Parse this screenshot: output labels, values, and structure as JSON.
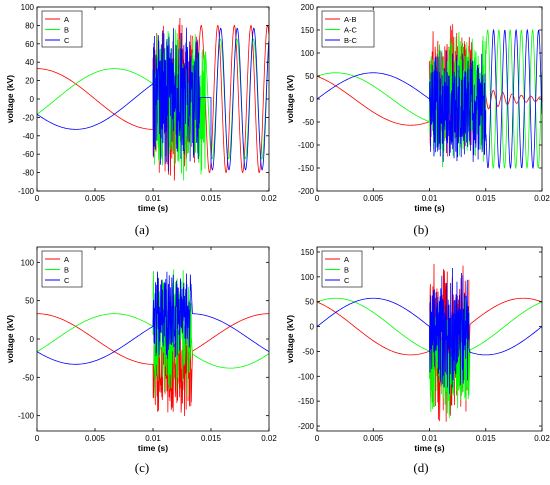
{
  "panel_labels": [
    "(a)",
    "(b)",
    "(c)",
    "(d)"
  ],
  "chart_data": [
    {
      "type": "line",
      "panel": "(a)",
      "xlabel": "time (s)",
      "ylabel": "voltage (kV)",
      "xlim": [
        0,
        0.02
      ],
      "ylim": [
        -100,
        100
      ],
      "xticks": [
        0,
        0.005,
        0.01,
        0.015,
        0.02
      ],
      "xtick_labels": [
        "0",
        "0.005",
        "0.01",
        "0.015",
        "0.02"
      ],
      "yticks": [
        -100,
        -80,
        -60,
        -40,
        -20,
        0,
        20,
        40,
        60,
        80,
        100
      ],
      "ytick_labels": [
        "-100",
        "-80",
        "-60",
        "-40",
        "-20",
        "0",
        "20",
        "40",
        "60",
        "80",
        "100"
      ],
      "legend_position": "top-left",
      "grid": false,
      "colors": {
        "A": "#ff0000",
        "B": "#00ff00",
        "C": "#0000ff"
      },
      "series": [
        {
          "name": "A",
          "color": "#ff0000",
          "pre_fault": {
            "amplitude": 33,
            "phase_deg": 90
          },
          "transient": {
            "start": 0.01,
            "end": 0.0138,
            "min": -93,
            "max": 90
          },
          "post_fault": {
            "start": 0.0138,
            "amplitude": 80,
            "frequency_hz": 700,
            "phase_deg": 0
          }
        },
        {
          "name": "B",
          "color": "#00ff00",
          "pre_fault": {
            "amplitude": 33,
            "phase_deg": -30
          },
          "transient": {
            "start": 0.01,
            "end": 0.0145,
            "min": -95,
            "max": 80
          },
          "post_fault": {
            "start": 0.0145,
            "amplitude": 65,
            "frequency_hz": 700,
            "phase_deg": 120
          }
        },
        {
          "name": "C",
          "color": "#0000ff",
          "pre_fault": {
            "amplitude": 33,
            "phase_deg": -150
          },
          "transient": {
            "start": 0.01,
            "end": 0.014,
            "min": -85,
            "max": 88
          },
          "post_fault": {
            "start": 0.015,
            "amplitude": 77,
            "frequency_hz": 700,
            "phase_deg": 240
          }
        }
      ]
    },
    {
      "type": "line",
      "panel": "(b)",
      "xlabel": "time (s)",
      "ylabel": "voltage (kV)",
      "xlim": [
        0,
        0.02
      ],
      "ylim": [
        -200,
        200
      ],
      "xticks": [
        0,
        0.005,
        0.01,
        0.015,
        0.02
      ],
      "xtick_labels": [
        "0",
        "0.005",
        "0.01",
        "0.015",
        "0.02"
      ],
      "yticks": [
        -200,
        -150,
        -100,
        -50,
        0,
        50,
        100,
        150,
        200
      ],
      "ytick_labels": [
        "-200",
        "-150",
        "-100",
        "-50",
        "0",
        "50",
        "100",
        "150",
        "200"
      ],
      "legend_position": "top-left",
      "grid": false,
      "colors": {
        "A-B": "#ff0000",
        "A-C": "#00ff00",
        "B-C": "#0000ff"
      },
      "series": [
        {
          "name": "A-B",
          "color": "#ff0000",
          "pre_fault": {
            "amplitude": 57,
            "phase_deg": 120
          },
          "transient": {
            "start": 0.01,
            "end": 0.0138,
            "min": -130,
            "max": 180
          },
          "post_fault": {
            "start": 0.0138,
            "amplitude": 35,
            "frequency_hz": 1200,
            "decay": 1.0,
            "phase_deg": 0
          }
        },
        {
          "name": "A-C",
          "color": "#00ff00",
          "pre_fault": {
            "amplitude": 57,
            "phase_deg": 60
          },
          "transient": {
            "start": 0.01,
            "end": 0.015,
            "min": -150,
            "max": 155
          },
          "post_fault": {
            "start": 0.015,
            "amplitude": 150,
            "frequency_hz": 1000,
            "phase_deg": 30
          }
        },
        {
          "name": "B-C",
          "color": "#0000ff",
          "pre_fault": {
            "amplitude": 57,
            "phase_deg": 0
          },
          "transient": {
            "start": 0.01,
            "end": 0.015,
            "min": -150,
            "max": 120
          },
          "post_fault": {
            "start": 0.015,
            "amplitude": 150,
            "frequency_hz": 1000,
            "phase_deg": 200
          }
        }
      ]
    },
    {
      "type": "line",
      "panel": "(c)",
      "xlabel": "time (s)",
      "ylabel": "voltage (kV)",
      "xlim": [
        0,
        0.02
      ],
      "ylim": [
        -120,
        120
      ],
      "xticks": [
        0,
        0.005,
        0.01,
        0.015,
        0.02
      ],
      "xtick_labels": [
        "0",
        "0.005",
        "0.01",
        "0.015",
        "0.02"
      ],
      "yticks": [
        -100,
        -50,
        0,
        50,
        100
      ],
      "ytick_labels": [
        "-100",
        "-50",
        "0",
        "50",
        "100"
      ],
      "legend_position": "top-left",
      "grid": false,
      "colors": {
        "A": "#ff0000",
        "B": "#00ff00",
        "C": "#0000ff"
      },
      "series": [
        {
          "name": "A",
          "color": "#ff0000",
          "pre_fault": {
            "amplitude": 33,
            "phase_deg": 90
          },
          "transient": {
            "start": 0.01,
            "end": 0.0133,
            "min": -105,
            "max": 30
          },
          "post_fault": {
            "start": 0.0133,
            "amplitude": 33,
            "frequency_hz": 50,
            "phase_deg": 90
          }
        },
        {
          "name": "B",
          "color": "#00ff00",
          "pre_fault": {
            "amplitude": 33,
            "phase_deg": -30
          },
          "transient": {
            "start": 0.01,
            "end": 0.0133,
            "min": -80,
            "max": 95
          },
          "post_fault": {
            "start": 0.0133,
            "amplitude": 38,
            "frequency_hz": 50,
            "phase_deg": -30
          }
        },
        {
          "name": "C",
          "color": "#0000ff",
          "pre_fault": {
            "amplitude": 33,
            "phase_deg": -150
          },
          "transient": {
            "start": 0.01,
            "end": 0.0133,
            "min": -30,
            "max": 90
          },
          "post_fault": {
            "start": 0.0133,
            "amplitude": 33,
            "frequency_hz": 50,
            "phase_deg": -150
          }
        }
      ]
    },
    {
      "type": "line",
      "panel": "(d)",
      "xlabel": "time (s)",
      "ylabel": "voltage (kV)",
      "xlim": [
        0,
        0.02
      ],
      "ylim": [
        -210,
        160
      ],
      "xticks": [
        0,
        0.005,
        0.01,
        0.015,
        0.02
      ],
      "xtick_labels": [
        "0",
        "0.005",
        "0.01",
        "0.015",
        "0.02"
      ],
      "yticks": [
        -200,
        -150,
        -100,
        -50,
        0,
        50,
        100,
        150
      ],
      "ytick_labels": [
        "-200",
        "-150",
        "-100",
        "-50",
        "0",
        "50",
        "100",
        "150"
      ],
      "legend_position": "top-left",
      "grid": false,
      "colors": {
        "A": "#ff0000",
        "B": "#00ff00",
        "C": "#0000ff"
      },
      "series": [
        {
          "name": "A",
          "color": "#ff0000",
          "pre_fault": {
            "amplitude": 57,
            "phase_deg": 120
          },
          "transient": {
            "start": 0.01,
            "end": 0.0135,
            "min": -200,
            "max": 155
          },
          "post_fault": {
            "start": 0.0135,
            "amplitude": 57,
            "frequency_hz": 50,
            "phase_deg": 120
          }
        },
        {
          "name": "B",
          "color": "#00ff00",
          "pre_fault": {
            "amplitude": 57,
            "phase_deg": 60
          },
          "transient": {
            "start": 0.01,
            "end": 0.0135,
            "min": -190,
            "max": 60
          },
          "post_fault": {
            "start": 0.0135,
            "amplitude": 57,
            "frequency_hz": 50,
            "phase_deg": 60
          }
        },
        {
          "name": "C",
          "color": "#0000ff",
          "pre_fault": {
            "amplitude": 57,
            "phase_deg": 0
          },
          "transient": {
            "start": 0.01,
            "end": 0.0135,
            "min": -150,
            "max": 120
          },
          "post_fault": {
            "start": 0.0135,
            "amplitude": 57,
            "frequency_hz": 50,
            "phase_deg": 0
          }
        }
      ]
    }
  ]
}
